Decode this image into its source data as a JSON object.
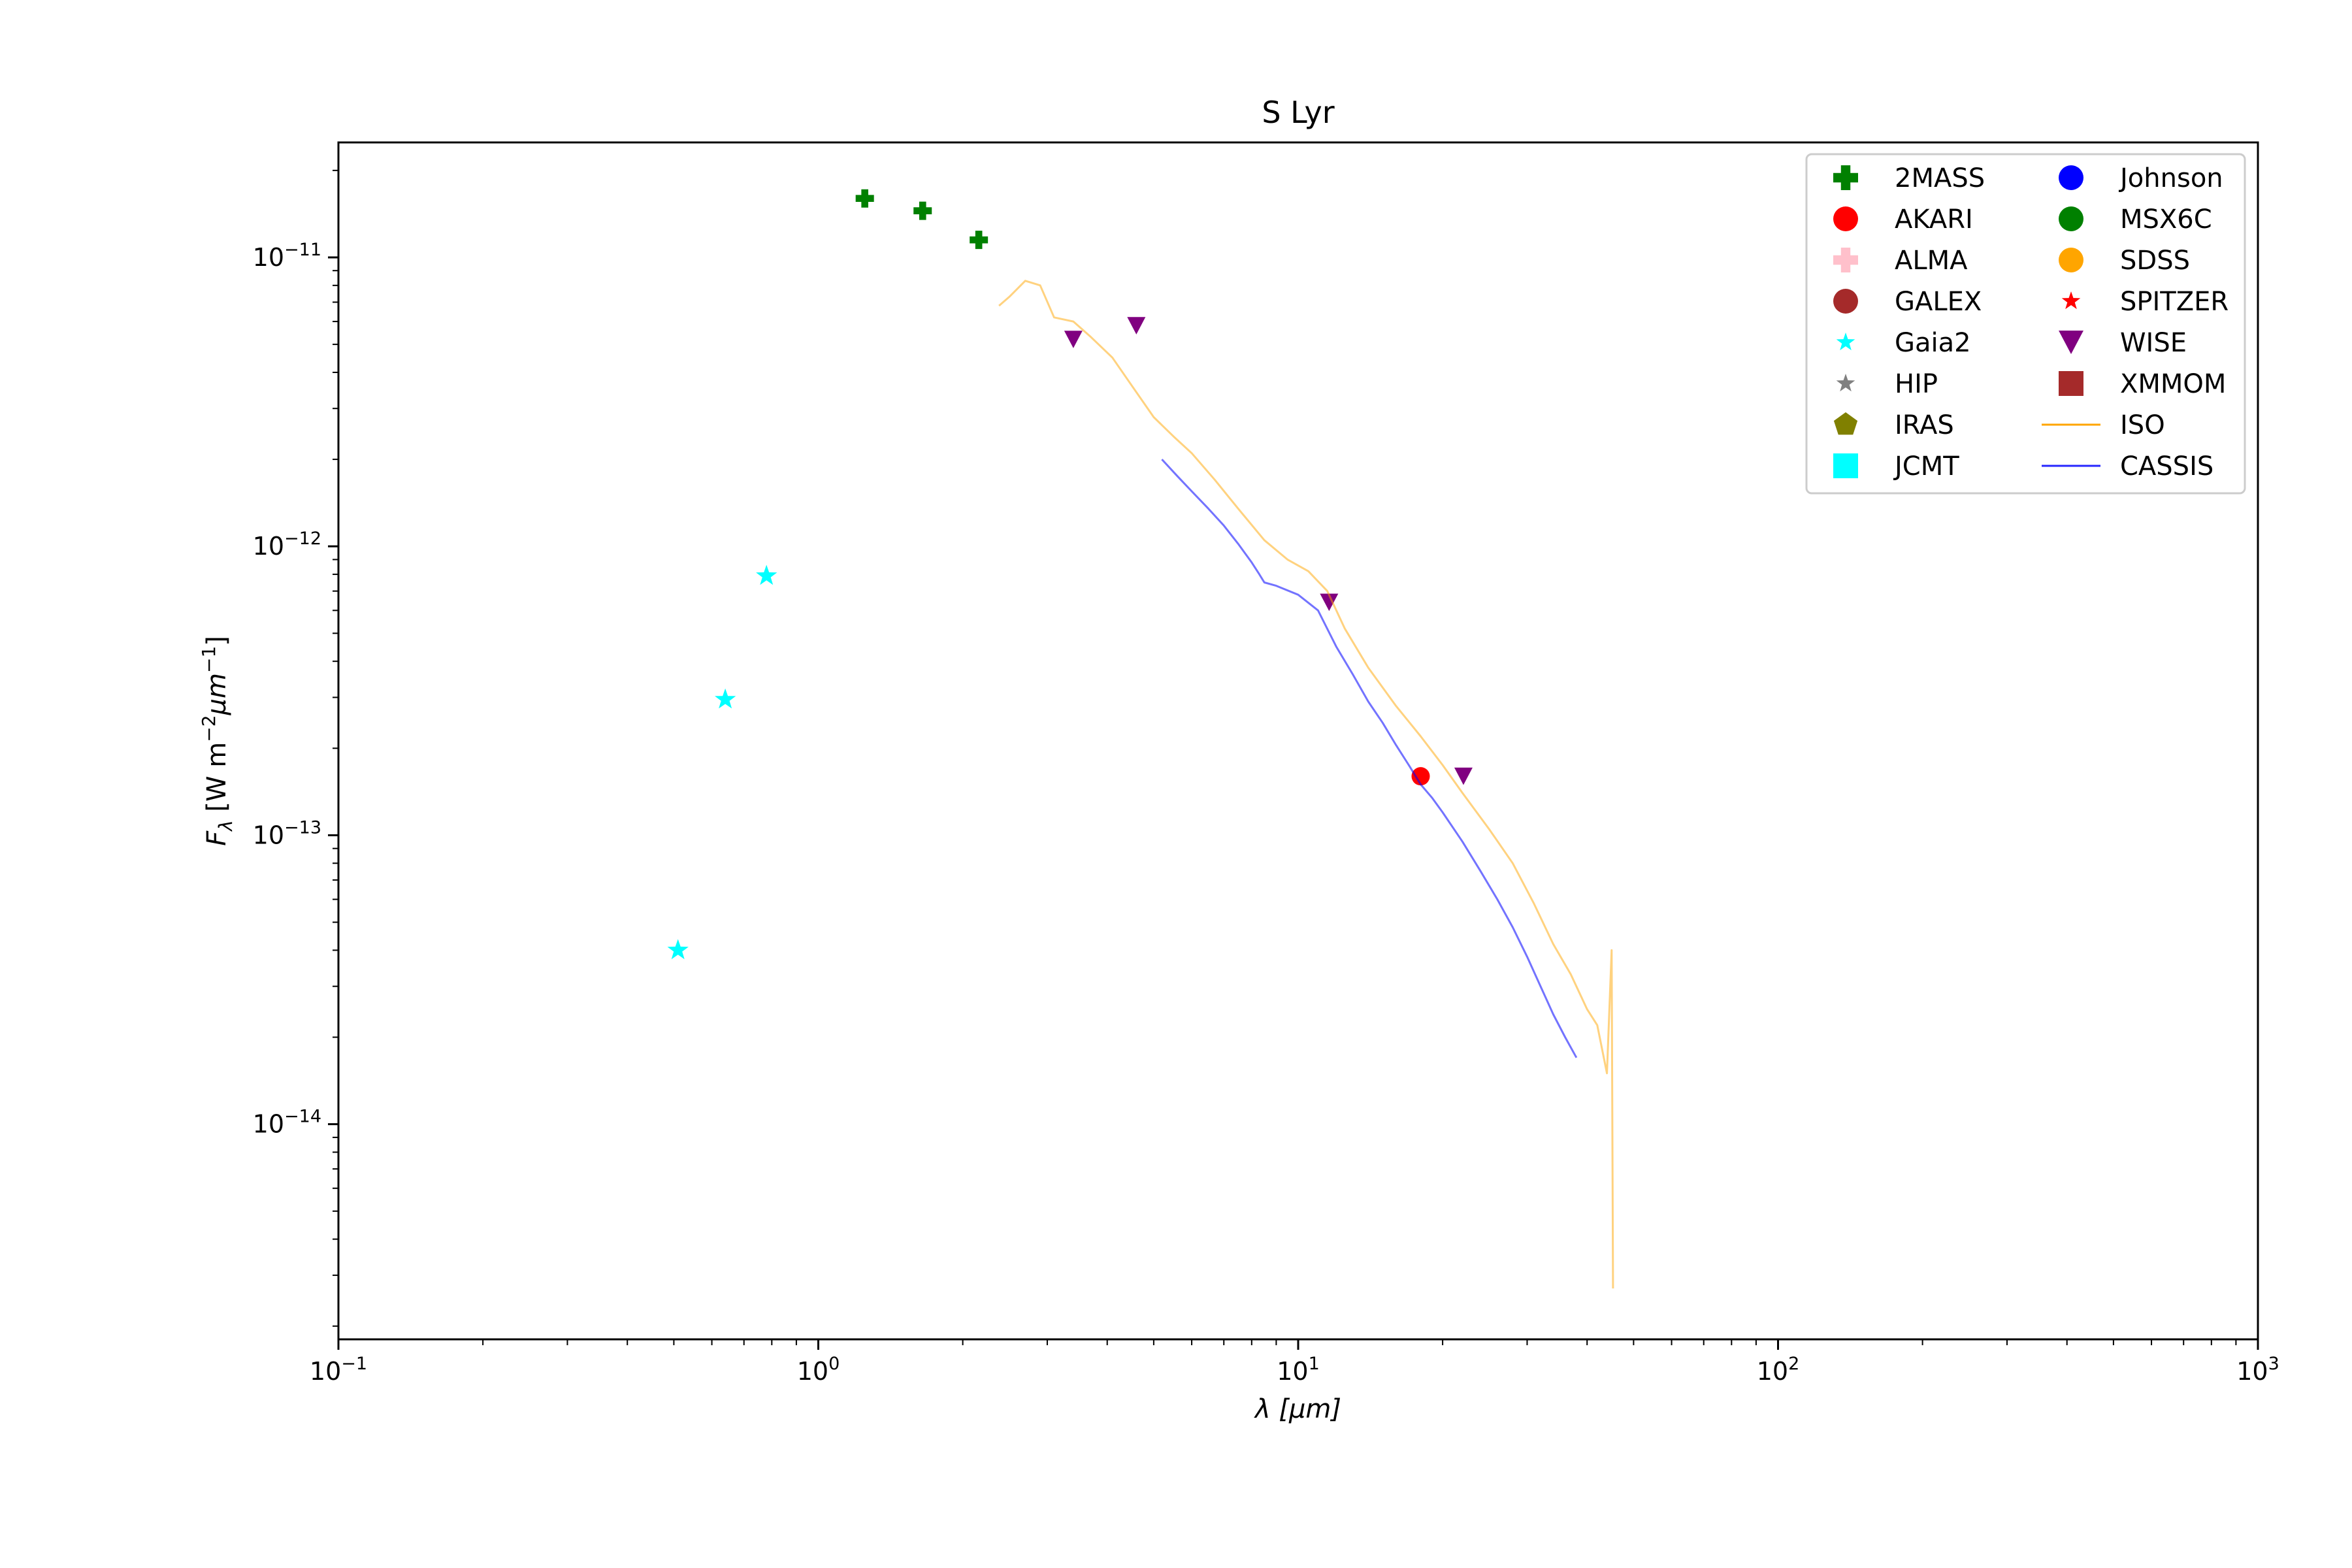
{
  "chart_data": {
    "type": "scatter",
    "title": "S Lyr",
    "xlabel": "λ [μm]",
    "ylabel": "F_λ [W m^-2 μm^-1]",
    "xscale": "log",
    "yscale": "log",
    "xlim": [
      0.1,
      1000
    ],
    "ylim": [
      1.8e-15,
      2.5e-11
    ],
    "grid": false,
    "legend_placement": "top-right",
    "x_ticks": [
      {
        "value": 0.1,
        "base": "10",
        "exp": "−1"
      },
      {
        "value": 1,
        "base": "10",
        "exp": "0"
      },
      {
        "value": 10,
        "base": "10",
        "exp": "1"
      },
      {
        "value": 100,
        "base": "10",
        "exp": "2"
      },
      {
        "value": 1000,
        "base": "10",
        "exp": "3"
      }
    ],
    "y_ticks": [
      {
        "value": 1e-14,
        "base": "10",
        "exp": "−14"
      },
      {
        "value": 1e-13,
        "base": "10",
        "exp": "−13"
      },
      {
        "value": 1e-12,
        "base": "10",
        "exp": "−12"
      },
      {
        "value": 1e-11,
        "base": "10",
        "exp": "−11"
      }
    ],
    "series": [
      {
        "name": "2MASS",
        "marker": "plus",
        "color": "#008000",
        "x": [
          1.25,
          1.65,
          2.16
        ],
        "y": [
          1.6e-11,
          1.45e-11,
          1.15e-11
        ]
      },
      {
        "name": "AKARI",
        "marker": "circle",
        "color": "#ff0000",
        "x": [
          18.0
        ],
        "y": [
          1.6e-13
        ]
      },
      {
        "name": "ALMA",
        "marker": "plus",
        "color": "#ffc0cb",
        "x": [],
        "y": []
      },
      {
        "name": "GALEX",
        "marker": "circle",
        "color": "#a52a2a",
        "x": [],
        "y": []
      },
      {
        "name": "Gaia2",
        "marker": "star",
        "color": "#00ffff",
        "x": [
          0.51,
          0.64,
          0.78
        ],
        "y": [
          4e-14,
          2.95e-13,
          7.9e-13
        ]
      },
      {
        "name": "HIP",
        "marker": "star",
        "color": "#808080",
        "x": [],
        "y": []
      },
      {
        "name": "IRAS",
        "marker": "pentagon",
        "color": "#808000",
        "x": [],
        "y": []
      },
      {
        "name": "JCMT",
        "marker": "square",
        "color": "#00ffff",
        "x": [],
        "y": []
      },
      {
        "name": "Johnson",
        "marker": "circle",
        "color": "#0000ff",
        "x": [],
        "y": []
      },
      {
        "name": "MSX6C",
        "marker": "circle",
        "color": "#008000",
        "x": [],
        "y": []
      },
      {
        "name": "SDSS",
        "marker": "circle",
        "color": "#ffa500",
        "x": [],
        "y": []
      },
      {
        "name": "SPITZER",
        "marker": "star",
        "color": "#ff0000",
        "x": [],
        "y": []
      },
      {
        "name": "WISE",
        "marker": "triangle-down",
        "color": "#800080",
        "x": [
          3.4,
          4.6,
          11.6,
          22.1
        ],
        "y": [
          5.2e-12,
          5.8e-12,
          6.4e-13,
          1.6e-13
        ]
      },
      {
        "name": "XMMOM",
        "marker": "square",
        "color": "#a52a2a",
        "x": [],
        "y": []
      },
      {
        "name": "ISO",
        "marker": "line",
        "color": "#ffa500",
        "x": [
          2.38,
          2.5,
          2.7,
          2.9,
          3.1,
          3.4,
          3.7,
          4.1,
          4.5,
          5.0,
          5.5,
          6.0,
          6.7,
          7.5,
          8.5,
          9.5,
          10.5,
          11.5,
          12.5,
          14.0,
          16.0,
          18.0,
          20.0,
          22.0,
          25.0,
          28.0,
          31.0,
          34.0,
          37.0,
          40.0,
          42.0,
          44.0,
          45.0,
          45.3
        ],
        "y": [
          6.8e-12,
          7.3e-12,
          8.3e-12,
          8e-12,
          6.2e-12,
          6e-12,
          5.3e-12,
          4.5e-12,
          3.6e-12,
          2.8e-12,
          2.4e-12,
          2.1e-12,
          1.7e-12,
          1.35e-12,
          1.05e-12,
          9e-13,
          8.2e-13,
          7e-13,
          5.2e-13,
          3.8e-13,
          2.8e-13,
          2.2e-13,
          1.75e-13,
          1.4e-13,
          1.05e-13,
          8e-14,
          5.8e-14,
          4.2e-14,
          3.3e-14,
          2.5e-14,
          2.2e-14,
          1.5e-14,
          4e-14,
          2.7e-15
        ]
      },
      {
        "name": "CASSIS",
        "marker": "line",
        "color": "#0000ff",
        "x": [
          5.2,
          5.6,
          6.0,
          6.5,
          7.0,
          7.5,
          8.0,
          8.3,
          8.5,
          9.0,
          10.0,
          11.0,
          12.0,
          13.0,
          14.0,
          15.0,
          16.0,
          17.0,
          18.0,
          19.0,
          20.0,
          22.0,
          24.0,
          26.0,
          28.0,
          30.0,
          32.0,
          34.0,
          36.0,
          38.0
        ],
        "y": [
          2e-12,
          1.75e-12,
          1.55e-12,
          1.35e-12,
          1.18e-12,
          1.02e-12,
          8.8e-13,
          8e-13,
          7.5e-13,
          7.3e-13,
          6.8e-13,
          6e-13,
          4.5e-13,
          3.6e-13,
          2.9e-13,
          2.45e-13,
          2.05e-13,
          1.75e-13,
          1.5e-13,
          1.35e-13,
          1.2e-13,
          9.5e-14,
          7.5e-14,
          6e-14,
          4.8e-14,
          3.8e-14,
          3e-14,
          2.4e-14,
          2e-14,
          1.7e-14
        ]
      }
    ]
  }
}
